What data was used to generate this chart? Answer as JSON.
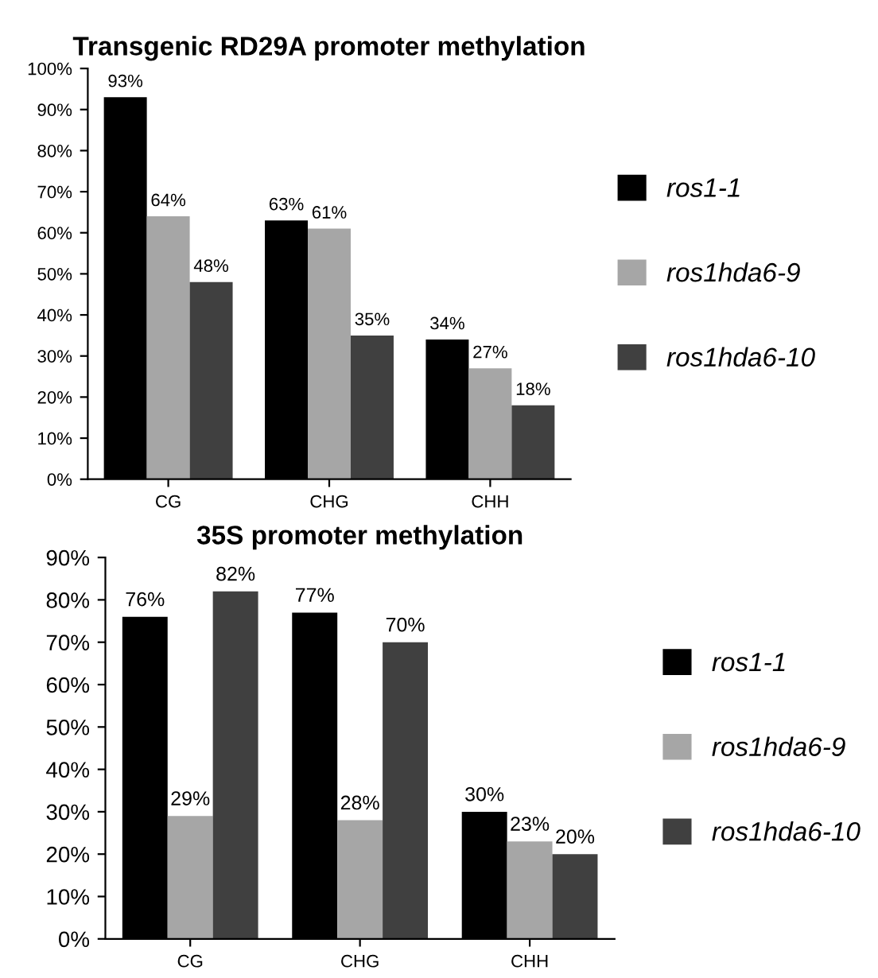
{
  "chart_data": [
    {
      "type": "bar",
      "title": "Transgenic RD29A promoter methylation",
      "categories": [
        "CG",
        "CHG",
        "CHH"
      ],
      "series": [
        {
          "name": "ros1-1",
          "color": "#000000",
          "values": [
            93,
            63,
            34
          ],
          "value_labels": [
            "93%",
            "63%",
            "34%"
          ]
        },
        {
          "name": "ros1hda6-9",
          "color": "#a6a6a6",
          "values": [
            64,
            61,
            27
          ],
          "value_labels": [
            "64%",
            "61%",
            "27%"
          ]
        },
        {
          "name": "ros1hda6-10",
          "color": "#404040",
          "values": [
            48,
            35,
            18
          ],
          "value_labels": [
            "48%",
            "35%",
            "18%"
          ]
        }
      ],
      "ylim": [
        0,
        100
      ],
      "yticks": [
        {
          "value": 0,
          "label": "0%"
        },
        {
          "value": 10,
          "label": "10%"
        },
        {
          "value": 20,
          "label": "20%"
        },
        {
          "value": 30,
          "label": "30%"
        },
        {
          "value": 40,
          "label": "40%"
        },
        {
          "value": 50,
          "label": "50%"
        },
        {
          "value": 60,
          "label": "60%"
        },
        {
          "value": 70,
          "label": "70%"
        },
        {
          "value": 80,
          "label": "80%"
        },
        {
          "value": 90,
          "label": "90%"
        },
        {
          "value": 100,
          "label": "100%"
        }
      ],
      "legend": "right"
    },
    {
      "type": "bar",
      "title": "35S promoter methylation",
      "categories": [
        "CG",
        "CHG",
        "CHH"
      ],
      "series": [
        {
          "name": "ros1-1",
          "color": "#000000",
          "values": [
            76,
            77,
            30
          ],
          "value_labels": [
            "76%",
            "77%",
            "30%"
          ]
        },
        {
          "name": "ros1hda6-9",
          "color": "#a6a6a6",
          "values": [
            29,
            28,
            23
          ],
          "value_labels": [
            "29%",
            "28%",
            "23%"
          ]
        },
        {
          "name": "ros1hda6-10",
          "color": "#404040",
          "values": [
            82,
            70,
            20
          ],
          "value_labels": [
            "82%",
            "70%",
            "20%"
          ]
        }
      ],
      "ylim": [
        0,
        90
      ],
      "yticks": [
        {
          "value": 0,
          "label": "0%"
        },
        {
          "value": 10,
          "label": "10%"
        },
        {
          "value": 20,
          "label": "20%"
        },
        {
          "value": 30,
          "label": "30%"
        },
        {
          "value": 40,
          "label": "40%"
        },
        {
          "value": 50,
          "label": "50%"
        },
        {
          "value": 60,
          "label": "60%"
        },
        {
          "value": 70,
          "label": "70%"
        },
        {
          "value": 80,
          "label": "80%"
        },
        {
          "value": 90,
          "label": "90%"
        }
      ],
      "legend": "right"
    }
  ]
}
